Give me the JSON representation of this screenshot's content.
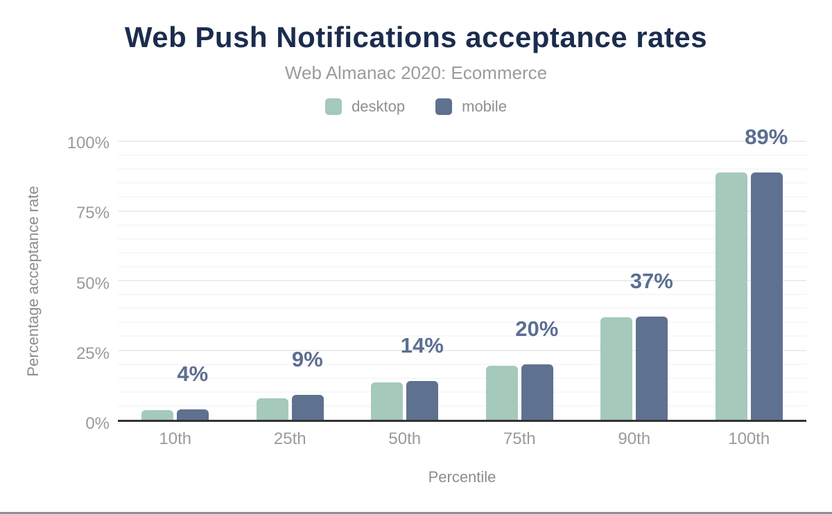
{
  "header": {
    "title": "Web Push Notifications acceptance rates",
    "subtitle": "Web Almanac 2020: Ecommerce"
  },
  "legend": {
    "items": [
      {
        "label": "desktop",
        "color": "#a5c9bb"
      },
      {
        "label": "mobile",
        "color": "#5f7190"
      }
    ]
  },
  "chart_data": {
    "type": "bar",
    "title": "Web Push Notifications acceptance rates",
    "subtitle": "Web Almanac 2020: Ecommerce",
    "categories": [
      "10th",
      "25th",
      "50th",
      "75th",
      "90th",
      "100th"
    ],
    "series": [
      {
        "name": "desktop",
        "color": "#a5c9bb",
        "values": [
          3.6,
          7.8,
          13.4,
          19.4,
          36.8,
          88.9
        ]
      },
      {
        "name": "mobile",
        "color": "#5f7190",
        "values": [
          3.8,
          8.9,
          14.0,
          20.0,
          37.0,
          88.9
        ]
      }
    ],
    "annotations": [
      "4%",
      "9%",
      "14%",
      "20%",
      "37%",
      "89%"
    ],
    "annotation_color": "#5c6e91",
    "xlabel": "Percentile",
    "ylabel": "Percentage acceptance rate",
    "ylim": [
      0,
      100
    ],
    "yticks": [
      {
        "label": "0%",
        "value": 0
      },
      {
        "label": "25%",
        "value": 25
      },
      {
        "label": "50%",
        "value": 50
      },
      {
        "label": "75%",
        "value": 75
      },
      {
        "label": "100%",
        "value": 100
      }
    ],
    "grid": {
      "minor_step": 5,
      "major_step": 25,
      "minor_color": "#f7f7f7",
      "major_color": "#ececec"
    },
    "legend_position": "top",
    "axis_line_color": "#333333"
  },
  "colors": {
    "title": "#1b2c4e",
    "muted_text": "#9a9a9a",
    "bottom_strip": "#909095"
  }
}
